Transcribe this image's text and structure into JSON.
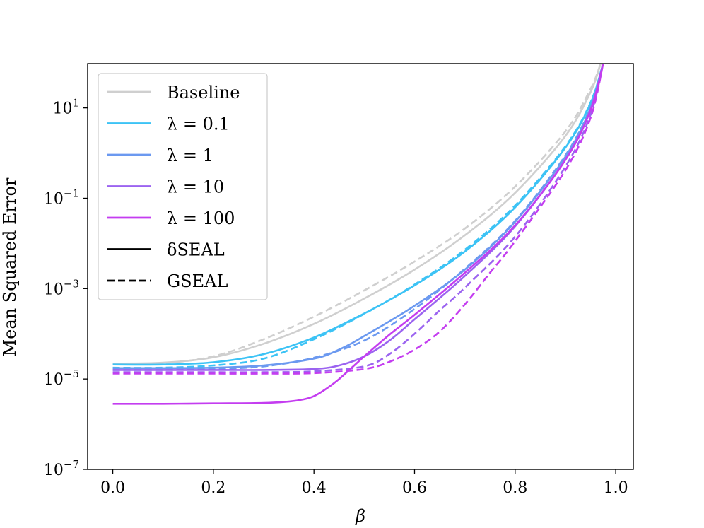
{
  "chart_data": {
    "type": "line",
    "title": "",
    "xlabel": "β",
    "ylabel": "Mean Squared Error",
    "xlim": [
      -0.05,
      1.035
    ],
    "ylim_log10": [
      -7,
      1.98
    ],
    "yscale": "log",
    "xticks": [
      {
        "value": 0.0,
        "label": "0.0"
      },
      {
        "value": 0.2,
        "label": "0.2"
      },
      {
        "value": 0.4,
        "label": "0.4"
      },
      {
        "value": 0.6,
        "label": "0.6"
      },
      {
        "value": 0.8,
        "label": "0.8"
      },
      {
        "value": 1.0,
        "label": "1.0"
      }
    ],
    "yticks": [
      {
        "exp": 1,
        "base": "10",
        "power": "1"
      },
      {
        "exp": -1,
        "base": "10",
        "power": "−1"
      },
      {
        "exp": -3,
        "base": "10",
        "power": "−3"
      },
      {
        "exp": -5,
        "base": "10",
        "power": "−5"
      },
      {
        "exp": -7,
        "base": "10",
        "power": "−7"
      }
    ],
    "legend": {
      "position": "upper-left",
      "entries": [
        {
          "label": "Baseline",
          "color": "#cfcfcf",
          "style": "solid"
        },
        {
          "label": "λ = 0.1",
          "color": "#3cc3f5",
          "style": "solid"
        },
        {
          "label": "λ = 1",
          "color": "#6b99f0",
          "style": "solid"
        },
        {
          "label": "λ = 10",
          "color": "#9b63f0",
          "style": "solid"
        },
        {
          "label": "λ = 100",
          "color": "#c43df0",
          "style": "solid"
        },
        {
          "label": "δSEAL",
          "color": "#000000",
          "style": "solid"
        },
        {
          "label": "GSEAL",
          "color": "#000000",
          "style": "dashed"
        }
      ]
    },
    "series": [
      {
        "name": "Baseline δSEAL",
        "color": "#cfcfcf",
        "dash": false,
        "x": [
          0,
          0.1,
          0.2,
          0.3,
          0.4,
          0.5,
          0.6,
          0.7,
          0.8,
          0.9,
          0.95,
          0.97
        ],
        "log10_y": [
          -4.66,
          -4.64,
          -4.52,
          -4.22,
          -3.78,
          -3.22,
          -2.58,
          -1.82,
          -0.88,
          0.38,
          1.35,
          1.98
        ]
      },
      {
        "name": "Baseline GSEAL",
        "color": "#cfcfcf",
        "dash": true,
        "x": [
          0,
          0.1,
          0.2,
          0.3,
          0.4,
          0.5,
          0.6,
          0.7,
          0.8,
          0.9,
          0.95,
          0.97
        ],
        "log10_y": [
          -4.68,
          -4.65,
          -4.5,
          -4.12,
          -3.62,
          -3.04,
          -2.4,
          -1.67,
          -0.74,
          0.48,
          1.42,
          1.98
        ]
      },
      {
        "name": "λ = 0.1 δSEAL",
        "color": "#3cc3f5",
        "dash": false,
        "x": [
          0,
          0.1,
          0.2,
          0.3,
          0.4,
          0.5,
          0.6,
          0.7,
          0.8,
          0.9,
          0.95,
          0.975
        ],
        "log10_y": [
          -4.68,
          -4.68,
          -4.63,
          -4.45,
          -4.08,
          -3.55,
          -2.93,
          -2.18,
          -1.2,
          0.12,
          1.1,
          1.98
        ]
      },
      {
        "name": "λ = 0.1 GSEAL",
        "color": "#3cc3f5",
        "dash": true,
        "x": [
          0,
          0.1,
          0.2,
          0.3,
          0.4,
          0.5,
          0.6,
          0.7,
          0.8,
          0.9,
          0.95,
          0.975
        ],
        "log10_y": [
          -4.75,
          -4.75,
          -4.7,
          -4.55,
          -4.12,
          -3.56,
          -2.91,
          -2.14,
          -1.16,
          0.15,
          1.12,
          1.98
        ]
      },
      {
        "name": "λ = 1 δSEAL",
        "color": "#6b99f0",
        "dash": false,
        "x": [
          0,
          0.1,
          0.2,
          0.3,
          0.4,
          0.45,
          0.5,
          0.6,
          0.7,
          0.8,
          0.9,
          0.95,
          0.975
        ],
        "log10_y": [
          -4.76,
          -4.76,
          -4.75,
          -4.7,
          -4.55,
          -4.35,
          -4.05,
          -3.38,
          -2.58,
          -1.52,
          -0.08,
          1.0,
          1.98
        ]
      },
      {
        "name": "λ = 1 GSEAL",
        "color": "#6b99f0",
        "dash": true,
        "x": [
          0,
          0.1,
          0.2,
          0.3,
          0.4,
          0.5,
          0.6,
          0.7,
          0.8,
          0.9,
          0.95,
          0.975
        ],
        "log10_y": [
          -4.8,
          -4.8,
          -4.78,
          -4.72,
          -4.53,
          -4.15,
          -3.45,
          -2.56,
          -1.5,
          -0.05,
          1.02,
          1.98
        ]
      },
      {
        "name": "λ = 10 δSEAL",
        "color": "#9b63f0",
        "dash": false,
        "x": [
          0,
          0.1,
          0.2,
          0.3,
          0.4,
          0.45,
          0.5,
          0.55,
          0.6,
          0.7,
          0.8,
          0.9,
          0.95,
          0.975
        ],
        "log10_y": [
          -4.8,
          -4.8,
          -4.8,
          -4.8,
          -4.78,
          -4.7,
          -4.5,
          -4.15,
          -3.68,
          -2.72,
          -1.62,
          -0.15,
          0.95,
          1.98
        ]
      },
      {
        "name": "λ = 10 GSEAL",
        "color": "#9b63f0",
        "dash": true,
        "x": [
          0,
          0.1,
          0.2,
          0.3,
          0.4,
          0.5,
          0.55,
          0.6,
          0.65,
          0.7,
          0.8,
          0.9,
          0.95,
          0.975
        ],
        "log10_y": [
          -4.85,
          -4.85,
          -4.85,
          -4.85,
          -4.83,
          -4.72,
          -4.45,
          -4.0,
          -3.48,
          -2.98,
          -1.85,
          -0.3,
          0.85,
          1.98
        ]
      },
      {
        "name": "λ = 100 δSEAL",
        "color": "#c43df0",
        "dash": false,
        "x": [
          0,
          0.1,
          0.2,
          0.3,
          0.35,
          0.38,
          0.4,
          0.42,
          0.45,
          0.5,
          0.55,
          0.6,
          0.7,
          0.8,
          0.9,
          0.95,
          0.975
        ],
        "log10_y": [
          -5.55,
          -5.55,
          -5.54,
          -5.53,
          -5.5,
          -5.45,
          -5.38,
          -5.25,
          -5.0,
          -4.5,
          -4.02,
          -3.58,
          -2.65,
          -1.6,
          -0.15,
          0.95,
          1.98
        ]
      },
      {
        "name": "λ = 100 GSEAL",
        "color": "#c43df0",
        "dash": true,
        "x": [
          0,
          0.1,
          0.2,
          0.3,
          0.4,
          0.5,
          0.55,
          0.6,
          0.65,
          0.7,
          0.75,
          0.8,
          0.9,
          0.95,
          0.975
        ],
        "log10_y": [
          -4.88,
          -4.88,
          -4.88,
          -4.88,
          -4.87,
          -4.78,
          -4.62,
          -4.35,
          -3.95,
          -3.35,
          -2.65,
          -1.95,
          -0.38,
          0.78,
          1.98
        ]
      }
    ]
  }
}
